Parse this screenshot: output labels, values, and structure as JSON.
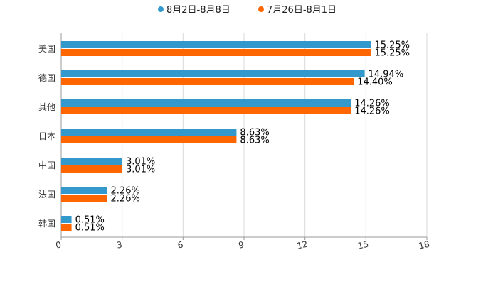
{
  "chart_data": {
    "type": "bar",
    "orientation": "horizontal",
    "title": "",
    "xlabel": "",
    "ylabel": "",
    "xlim": [
      0,
      18
    ],
    "ticks": [
      0,
      3,
      6,
      9,
      12,
      15,
      18
    ],
    "grid": true,
    "legend_position": "top-center",
    "categories": [
      "美国",
      "德国",
      "其他",
      "日本",
      "中国",
      "法国",
      "韩国"
    ],
    "series": [
      {
        "name": "8月2日-8月8日",
        "color": "#3399cc",
        "values": [
          15.25,
          14.94,
          14.26,
          8.63,
          3.01,
          2.26,
          0.51
        ],
        "labels": [
          "15.25%",
          "14.94%",
          "14.26%",
          "8.63%",
          "3.01%",
          "2.26%",
          "0.51%"
        ]
      },
      {
        "name": "7月26日-8月1日",
        "color": "#ff6600",
        "values": [
          15.25,
          14.4,
          14.26,
          8.63,
          3.01,
          2.26,
          0.51
        ],
        "labels": [
          "15.25%",
          "14.40%",
          "14.26%",
          "8.63%",
          "3.01%",
          "2.26%",
          "0.51%"
        ]
      }
    ]
  }
}
